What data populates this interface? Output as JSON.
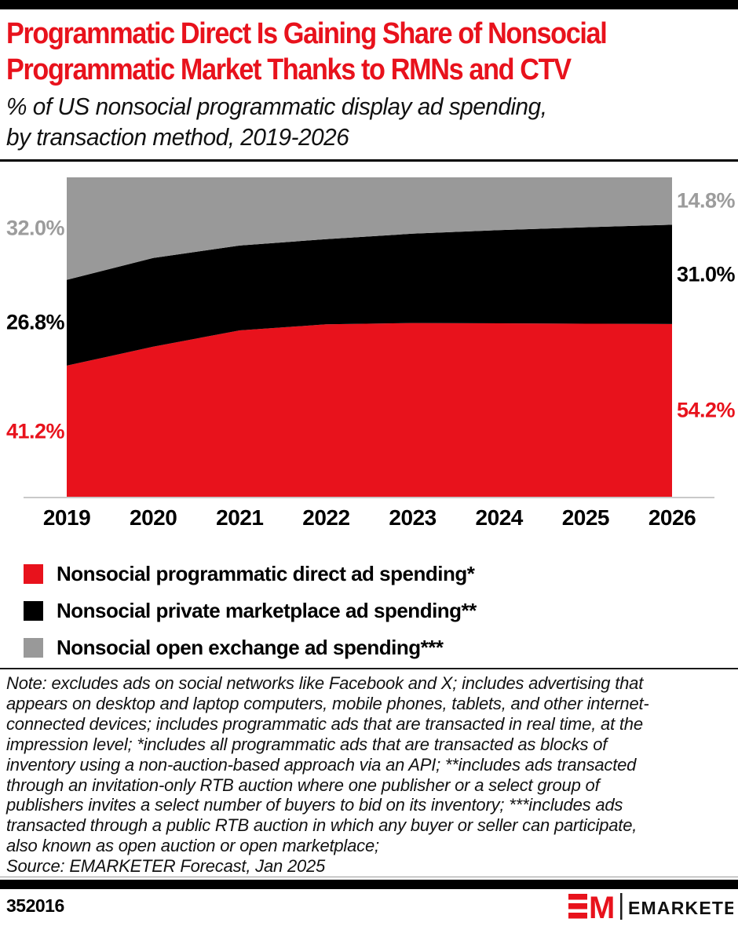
{
  "brand": {
    "red": "#e8121c",
    "black": "#000000",
    "gray": "#999999",
    "rule_gray": "#c9c9c9"
  },
  "title": {
    "color": "#e8121c",
    "lines": [
      "Programmatic Direct Is Gaining Share of Nonsocial",
      "Programmatic Market Thanks to RMNs and CTV"
    ]
  },
  "subtitle": {
    "lines": [
      "% of US nonsocial programmatic display ad spending,",
      "by transaction method, 2019-2026"
    ]
  },
  "chart_data": {
    "type": "area",
    "stacked": true,
    "x": [
      2019,
      2020,
      2021,
      2022,
      2023,
      2024,
      2025,
      2026
    ],
    "unit": "%",
    "ylim": [
      0,
      100
    ],
    "grid": false,
    "legend_position": "bottom",
    "series": [
      {
        "name": "Nonsocial programmatic direct ad spending*",
        "color": "#e8121c",
        "label_color": "#e8121c",
        "values": [
          41.2,
          47.1,
          52.2,
          54.1,
          54.5,
          54.4,
          54.3,
          54.2
        ]
      },
      {
        "name": "Nonsocial private marketplace ad spending**",
        "color": "#000000",
        "label_color": "#000000",
        "values": [
          26.8,
          27.7,
          26.5,
          26.6,
          27.9,
          29.1,
          30.1,
          31.0
        ]
      },
      {
        "name": "Nonsocial open exchange ad spending***",
        "color": "#999999",
        "label_color": "#9c9c9c",
        "values": [
          32.0,
          25.2,
          21.3,
          19.3,
          17.6,
          16.5,
          15.6,
          14.8
        ]
      }
    ],
    "edge_labels": {
      "left": [
        "41.2%",
        "26.8%",
        "32.0%"
      ],
      "right": [
        "54.2%",
        "31.0%",
        "14.8%"
      ]
    }
  },
  "legend": {
    "items": [
      {
        "label": "Nonsocial programmatic direct ad spending*",
        "color": "#e8121c"
      },
      {
        "label": "Nonsocial private marketplace ad spending**",
        "color": "#000000"
      },
      {
        "label": "Nonsocial open exchange ad spending***",
        "color": "#999999"
      }
    ]
  },
  "note": {
    "lines": [
      "Note: excludes ads on social networks like Facebook and X; includes advertising that",
      "appears on desktop and laptop computers, mobile phones, tablets, and other internet-",
      "connected devices; includes programmatic ads that are transacted in real time, at the",
      "impression level; *includes all programmatic ads that are transacted as blocks of",
      "inventory using a non-auction-based approach via an API; **includes ads transacted",
      "through an invitation-only RTB auction where one publisher or a select group of",
      "publishers invites a select number of buyers to bid on its inventory; ***includes ads",
      "transacted through a public RTB auction in which any buyer or seller can participate,",
      "also known as open auction or open marketplace;",
      "Source: EMARKETER Forecast, Jan 2025"
    ]
  },
  "footer": {
    "chart_id": "352016",
    "logo_monogram": "EM",
    "logo_text": "EMARKETER"
  }
}
